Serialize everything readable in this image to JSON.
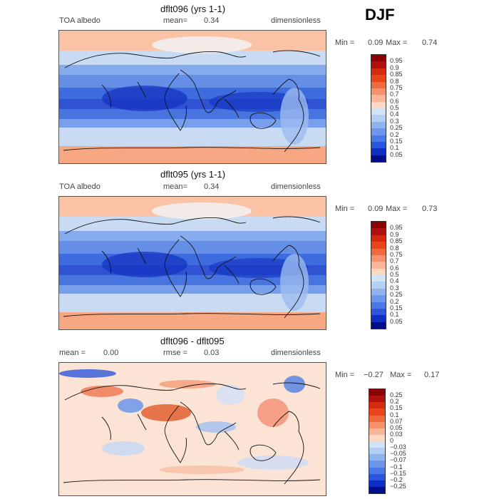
{
  "season": "DJF",
  "panels": [
    {
      "title": "dflt096 (yrs 1-1)",
      "left_label": "TOA albedo",
      "center_label": "mean=",
      "center_value": "0.34",
      "right_label": "dimensionless",
      "min_label": "Min =",
      "min_value": "0.09",
      "max_label": "Max =",
      "max_value": "0.74",
      "colorbar_labels": [
        "0.95",
        "0.9",
        "0.85",
        "0.8",
        "0.75",
        "0.7",
        "0.6",
        "0.5",
        "0.4",
        "0.3",
        "0.25",
        "0.2",
        "0.15",
        "0.1",
        "0.05"
      ],
      "colorbar_colors": [
        "#8b0000",
        "#b01010",
        "#d42a10",
        "#e8461a",
        "#f06a40",
        "#f7916c",
        "#fbb598",
        "#fdd9c4",
        "#d3e3f6",
        "#b4cff2",
        "#8fb4ee",
        "#6c97ea",
        "#4a78e6",
        "#2a55dc",
        "#0d2fc6",
        "#000e8c"
      ]
    },
    {
      "title": "dflt095 (yrs 1-1)",
      "left_label": "TOA albedo",
      "center_label": "mean=",
      "center_value": "0.34",
      "right_label": "dimensionless",
      "min_label": "Min =",
      "min_value": "0.09",
      "max_label": "Max =",
      "max_value": "0.73",
      "colorbar_labels": [
        "0.95",
        "0.9",
        "0.85",
        "0.8",
        "0.75",
        "0.7",
        "0.6",
        "0.5",
        "0.4",
        "0.3",
        "0.25",
        "0.2",
        "0.15",
        "0.1",
        "0.05"
      ],
      "colorbar_colors": [
        "#8b0000",
        "#b01010",
        "#d42a10",
        "#e8461a",
        "#f06a40",
        "#f7916c",
        "#fbb598",
        "#fdd9c4",
        "#d3e3f6",
        "#b4cff2",
        "#8fb4ee",
        "#6c97ea",
        "#4a78e6",
        "#2a55dc",
        "#0d2fc6",
        "#000e8c"
      ]
    },
    {
      "title": "dflt096 - dflt095",
      "left_label": "mean =",
      "left_value": "0.00",
      "center_label": "rmse =",
      "center_value": "0.03",
      "right_label": "dimensionless",
      "min_label": "Min =",
      "min_value": "−0.27",
      "max_label": "Max =",
      "max_value": "0.17",
      "colorbar_labels": [
        "0.25",
        "0.2",
        "0.15",
        "0.1",
        "0.07",
        "0.05",
        "0.03",
        "0",
        "−0.03",
        "−0.05",
        "−0.07",
        "−0.1",
        "−0.15",
        "−0.2",
        "−0.25"
      ],
      "colorbar_colors": [
        "#8b0000",
        "#b01010",
        "#d42a10",
        "#e8461a",
        "#f06a40",
        "#f7916c",
        "#fbb598",
        "#fdd9c4",
        "#d3e3f6",
        "#b4cff2",
        "#8fb4ee",
        "#6c97ea",
        "#4a78e6",
        "#2a55dc",
        "#0d2fc6",
        "#000e8c"
      ]
    }
  ]
}
